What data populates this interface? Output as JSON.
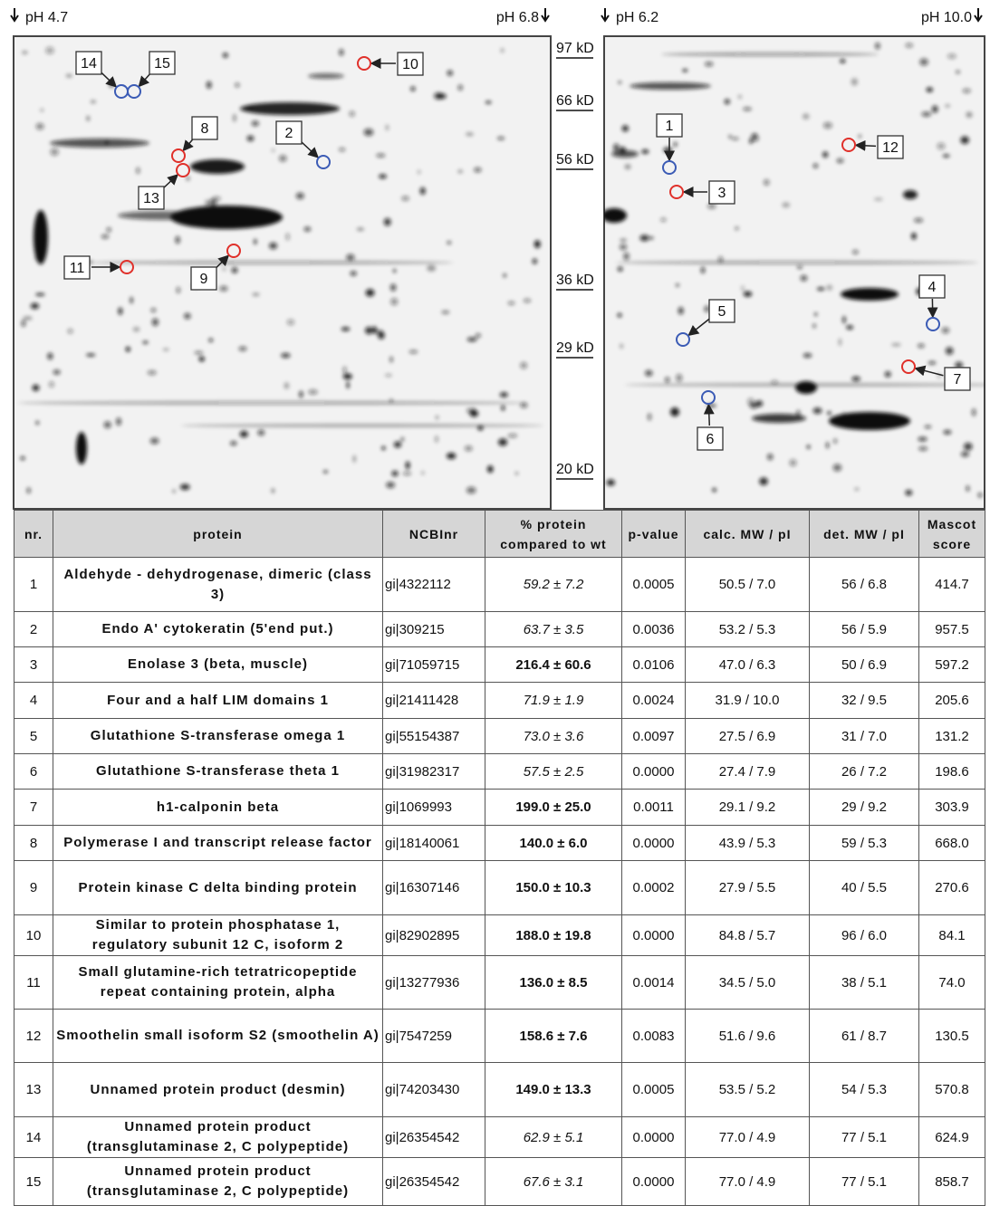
{
  "gels": {
    "ph_labels": [
      "pH 4.7",
      "pH 6.8",
      "pH 6.2",
      "pH 10.0"
    ],
    "mw_markers": [
      "97 kD",
      "66 kD",
      "56 kD",
      "36 kD",
      "29 kD",
      "20 kD"
    ],
    "spots": [
      {
        "label": "14",
        "color": "#3b5bb5"
      },
      {
        "label": "15",
        "color": "#3b5bb5"
      },
      {
        "label": "10",
        "color": "#e0302a"
      },
      {
        "label": "8",
        "color": "#e0302a"
      },
      {
        "label": "2",
        "color": "#3b5bb5"
      },
      {
        "label": "13",
        "color": "#e0302a"
      },
      {
        "label": "9",
        "color": "#e0302a"
      },
      {
        "label": "11",
        "color": "#e0302a"
      },
      {
        "label": "1",
        "color": "#3b5bb5"
      },
      {
        "label": "12",
        "color": "#e0302a"
      },
      {
        "label": "3",
        "color": "#e0302a"
      },
      {
        "label": "4",
        "color": "#3b5bb5"
      },
      {
        "label": "5",
        "color": "#3b5bb5"
      },
      {
        "label": "7",
        "color": "#e0302a"
      },
      {
        "label": "6",
        "color": "#3b5bb5"
      }
    ]
  },
  "table": {
    "columns": [
      "nr.",
      "protein",
      "NCBInr",
      "% protein compared to wt",
      "p-value",
      "calc. MW / pI",
      "det. MW / pI",
      "Mascot score"
    ],
    "rows": [
      [
        "1",
        "Aldehyde - dehydrogenase, dimeric (class 3)",
        "gi|4322112",
        "59.2 ± 7.2",
        "0.0005",
        "50.5 / 7.0",
        "56 / 6.8",
        "414.7"
      ],
      [
        "2",
        "Endo A' cytokeratin (5'end put.)",
        "gi|309215",
        "63.7 ± 3.5",
        "0.0036",
        "53.2 / 5.3",
        "56 / 5.9",
        "957.5"
      ],
      [
        "3",
        "Enolase 3 (beta, muscle)",
        "gi|71059715",
        "216.4 ± 60.6",
        "0.0106",
        "47.0 / 6.3",
        "50 / 6.9",
        "597.2"
      ],
      [
        "4",
        "Four and a half LIM domains 1",
        "gi|21411428",
        "71.9 ± 1.9",
        "0.0024",
        "31.9 / 10.0",
        "32 / 9.5",
        "205.6"
      ],
      [
        "5",
        "Glutathione S-transferase omega 1",
        "gi|55154387",
        "73.0 ± 3.6",
        "0.0097",
        "27.5 / 6.9",
        "31 / 7.0",
        "131.2"
      ],
      [
        "6",
        "Glutathione S-transferase theta 1",
        "gi|31982317",
        "57.5 ± 2.5",
        "0.0000",
        "27.4 / 7.9",
        "26 / 7.2",
        "198.6"
      ],
      [
        "7",
        "h1-calponin beta",
        "gi|1069993",
        "199.0 ± 25.0",
        "0.0011",
        "29.1 / 9.2",
        "29 / 9.2",
        "303.9"
      ],
      [
        "8",
        "Polymerase I and transcript release factor",
        "gi|18140061",
        "140.0 ± 6.0",
        "0.0000",
        "43.9 / 5.3",
        "59 / 5.3",
        "668.0"
      ],
      [
        "9",
        "Protein kinase C delta binding protein",
        "gi|16307146",
        "150.0 ± 10.3",
        "0.0002",
        "27.9 / 5.5",
        "40 / 5.5",
        "270.6"
      ],
      [
        "10",
        "Similar to protein phosphatase 1, regulatory subunit 12 C, isoform 2",
        "gi|82902895",
        "188.0 ± 19.8",
        "0.0000",
        "84.8 / 5.7",
        "96 / 6.0",
        "84.1"
      ],
      [
        "11",
        "Small glutamine-rich tetratricopeptide repeat containing protein, alpha",
        "gi|13277936",
        "136.0 ± 8.5",
        "0.0014",
        "34.5 / 5.0",
        "38 / 5.1",
        "74.0"
      ],
      [
        "12",
        "Smoothelin small isoform S2 (smoothelin A)",
        "gi|7547259",
        "158.6 ± 7.6",
        "0.0083",
        "51.6 / 9.6",
        "61 / 8.7",
        "130.5"
      ],
      [
        "13",
        "Unnamed protein product (desmin)",
        "gi|74203430",
        "149.0 ± 13.3",
        "0.0005",
        "53.5 / 5.2",
        "54 / 5.3",
        "570.8"
      ],
      [
        "14",
        "Unnamed protein product (transglutaminase 2, C polypeptide)",
        "gi|26354542",
        "62.9 ± 5.1",
        "0.0000",
        "77.0 / 4.9",
        "77 / 5.1",
        "624.9"
      ],
      [
        "15",
        "Unnamed protein product (transglutaminase 2, C polypeptide)",
        "gi|26354542",
        "67.6 ± 3.1",
        "0.0000",
        "77.0 / 4.9",
        "77 / 5.1",
        "858.7"
      ]
    ]
  }
}
